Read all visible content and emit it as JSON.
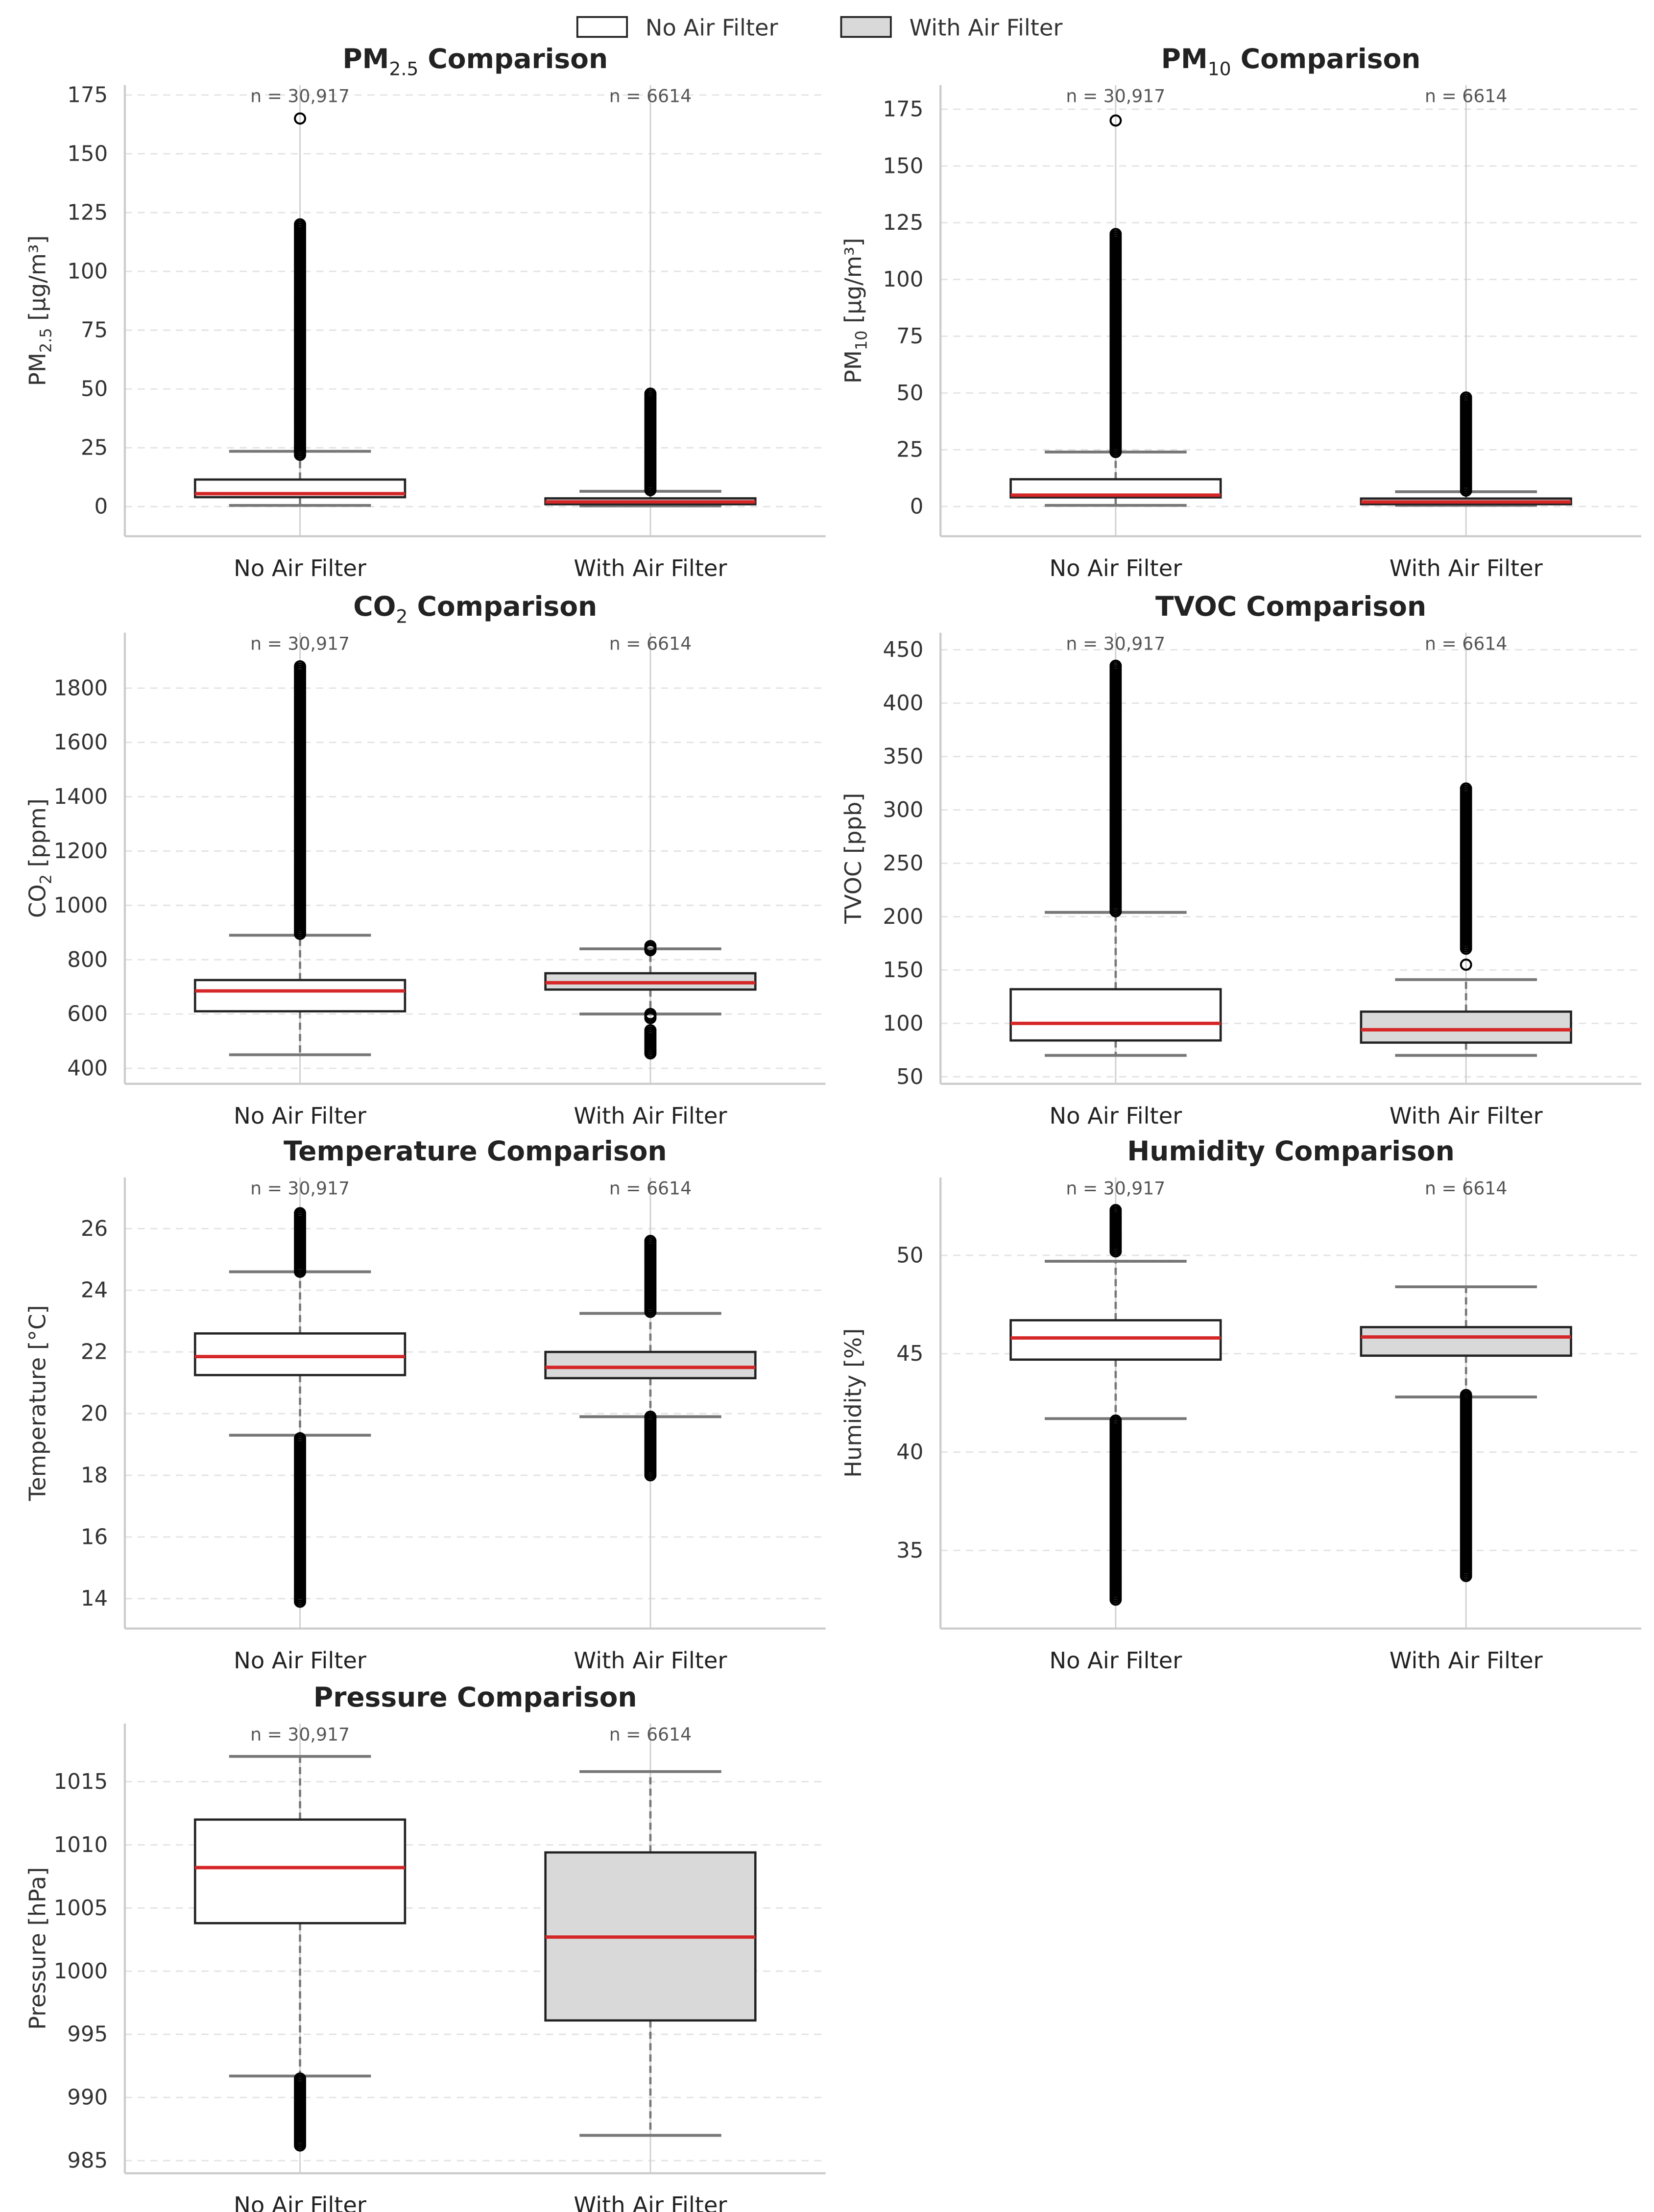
{
  "legend": [
    {
      "label": "No Air Filter",
      "fill": "#ffffff"
    },
    {
      "label": "With Air Filter",
      "fill": "#d9d9d9"
    }
  ],
  "colors": {
    "box_edge": "#222222",
    "median": "#d62728",
    "whisker": "#777777",
    "grid": "#e3e3e3"
  },
  "chart_data": [
    {
      "type": "box",
      "title_pre": "PM",
      "title_sub": "2.5",
      "title_post": " Comparison",
      "ylabel_pre": "PM",
      "ylabel_sub": "2.5",
      "ylabel_post": " [µg/m³]",
      "ylim": [
        -12.6,
        179.2
      ],
      "yticks": [
        0,
        25,
        50,
        75,
        100,
        125,
        150,
        175
      ],
      "categories": [
        "No Air Filter",
        "With Air Filter"
      ],
      "n_labels": [
        "n = 30,917",
        "n = 6614"
      ],
      "boxes": [
        {
          "whislo": 0.5,
          "q1": 4,
          "med": 5.5,
          "q3": 11.5,
          "whishi": 23.5,
          "outlier_ranges": [
            [
              22,
              120
            ]
          ],
          "outliers": [
            165
          ]
        },
        {
          "whislo": 0.3,
          "q1": 1,
          "med": 2,
          "q3": 3.5,
          "whishi": 6.5,
          "outlier_ranges": [
            [
              7,
              48
            ]
          ],
          "outliers": []
        }
      ]
    },
    {
      "type": "box",
      "title_pre": "PM",
      "title_sub": "10",
      "title_post": " Comparison",
      "ylabel_pre": "PM",
      "ylabel_sub": "10",
      "ylabel_post": " [µg/m³]",
      "ylim": [
        -13.1,
        185.6
      ],
      "yticks": [
        0,
        25,
        50,
        75,
        100,
        125,
        150,
        175
      ],
      "categories": [
        "No Air Filter",
        "With Air Filter"
      ],
      "n_labels": [
        "n = 30,917",
        "n = 6614"
      ],
      "boxes": [
        {
          "whislo": 0.5,
          "q1": 4,
          "med": 5,
          "q3": 12,
          "whishi": 24,
          "outlier_ranges": [
            [
              24,
              120
            ]
          ],
          "outliers": [
            170
          ]
        },
        {
          "whislo": 0.5,
          "q1": 1,
          "med": 2,
          "q3": 3.5,
          "whishi": 6.5,
          "outlier_ranges": [
            [
              7,
              48
            ]
          ],
          "outliers": []
        }
      ]
    },
    {
      "type": "box",
      "title_pre": "CO",
      "title_sub": "2",
      "title_post": " Comparison",
      "ylabel_pre": "CO",
      "ylabel_sub": "2",
      "ylabel_post": " [ppm]",
      "ylim": [
        343,
        2004
      ],
      "yticks": [
        400,
        600,
        800,
        1000,
        1200,
        1400,
        1600,
        1800
      ],
      "categories": [
        "No Air Filter",
        "With Air Filter"
      ],
      "n_labels": [
        "n = 30,917",
        "n = 6614"
      ],
      "boxes": [
        {
          "whislo": 450,
          "q1": 610,
          "med": 685,
          "q3": 725,
          "whishi": 890,
          "outlier_ranges": [
            [
              895,
              1880
            ]
          ],
          "outliers": []
        },
        {
          "whislo": 600,
          "q1": 690,
          "med": 715,
          "q3": 750,
          "whishi": 840,
          "outlier_ranges": [
            [
              835,
              850
            ],
            [
              585,
              600
            ],
            [
              455,
              540
            ]
          ],
          "outliers": []
        }
      ]
    },
    {
      "type": "box",
      "title_pre": "TVOC Comparison",
      "title_sub": "",
      "title_post": "",
      "ylabel_pre": "TVOC [ppb]",
      "ylabel_sub": "",
      "ylabel_post": "",
      "ylim": [
        43.4,
        466
      ],
      "yticks": [
        50,
        100,
        150,
        200,
        250,
        300,
        350,
        400,
        450
      ],
      "categories": [
        "No Air Filter",
        "With Air Filter"
      ],
      "n_labels": [
        "n = 30,917",
        "n = 6614"
      ],
      "boxes": [
        {
          "whislo": 70,
          "q1": 84,
          "med": 100,
          "q3": 132,
          "whishi": 204,
          "outlier_ranges": [
            [
              205,
              435
            ]
          ],
          "outliers": []
        },
        {
          "whislo": 70,
          "q1": 82,
          "med": 94,
          "q3": 111,
          "whishi": 141,
          "outlier_ranges": [
            [
              170,
              320
            ]
          ],
          "outliers": [
            155
          ]
        }
      ]
    },
    {
      "type": "box",
      "title_pre": "Temperature Comparison",
      "title_sub": "",
      "title_post": "",
      "ylabel_pre": "Temperature [°C]",
      "ylabel_sub": "",
      "ylabel_post": "",
      "ylim": [
        13.03,
        27.66
      ],
      "yticks": [
        14,
        16,
        18,
        20,
        22,
        24,
        26
      ],
      "categories": [
        "No Air Filter",
        "With Air Filter"
      ],
      "n_labels": [
        "n = 30,917",
        "n = 6614"
      ],
      "boxes": [
        {
          "whislo": 19.3,
          "q1": 21.25,
          "med": 21.85,
          "q3": 22.6,
          "whishi": 24.6,
          "outlier_ranges": [
            [
              24.6,
              26.5
            ],
            [
              13.9,
              19.2
            ]
          ],
          "outliers": []
        },
        {
          "whislo": 19.9,
          "q1": 21.15,
          "med": 21.5,
          "q3": 22.0,
          "whishi": 23.25,
          "outlier_ranges": [
            [
              23.3,
              25.6
            ],
            [
              18.0,
              19.9
            ]
          ],
          "outliers": []
        }
      ]
    },
    {
      "type": "box",
      "title_pre": "Humidity Comparison",
      "title_sub": "",
      "title_post": "",
      "ylabel_pre": "Humidity [%]",
      "ylabel_sub": "",
      "ylabel_post": "",
      "ylim": [
        31.03,
        53.96
      ],
      "yticks": [
        35,
        40,
        45,
        50
      ],
      "categories": [
        "No Air Filter",
        "With Air Filter"
      ],
      "n_labels": [
        "n = 30,917",
        "n = 6614"
      ],
      "boxes": [
        {
          "whislo": 41.7,
          "q1": 44.7,
          "med": 45.8,
          "q3": 46.7,
          "whishi": 49.7,
          "outlier_ranges": [
            [
              50.2,
              52.3
            ],
            [
              32.5,
              41.6
            ]
          ],
          "outliers": []
        },
        {
          "whislo": 42.8,
          "q1": 44.9,
          "med": 45.85,
          "q3": 46.35,
          "whishi": 48.4,
          "outlier_ranges": [
            [
              33.7,
              42.9
            ]
          ],
          "outliers": []
        }
      ]
    },
    {
      "type": "box",
      "title_pre": "Pressure Comparison",
      "title_sub": "",
      "title_post": "",
      "ylabel_pre": "Pressure [hPa]",
      "ylabel_sub": "",
      "ylabel_post": "",
      "ylim": [
        984.0,
        1019.6
      ],
      "yticks": [
        985,
        990,
        995,
        1000,
        1005,
        1010,
        1015
      ],
      "categories": [
        "No Air Filter",
        "With Air Filter"
      ],
      "n_labels": [
        "n = 30,917",
        "n = 6614"
      ],
      "boxes": [
        {
          "whislo": 991.7,
          "q1": 1003.8,
          "med": 1008.2,
          "q3": 1012,
          "whishi": 1017,
          "outlier_ranges": [
            [
              986.2,
              991.5
            ]
          ],
          "outliers": []
        },
        {
          "whislo": 987,
          "q1": 996.1,
          "med": 1002.7,
          "q3": 1009.4,
          "whishi": 1015.8,
          "outlier_ranges": [],
          "outliers": []
        }
      ]
    }
  ]
}
